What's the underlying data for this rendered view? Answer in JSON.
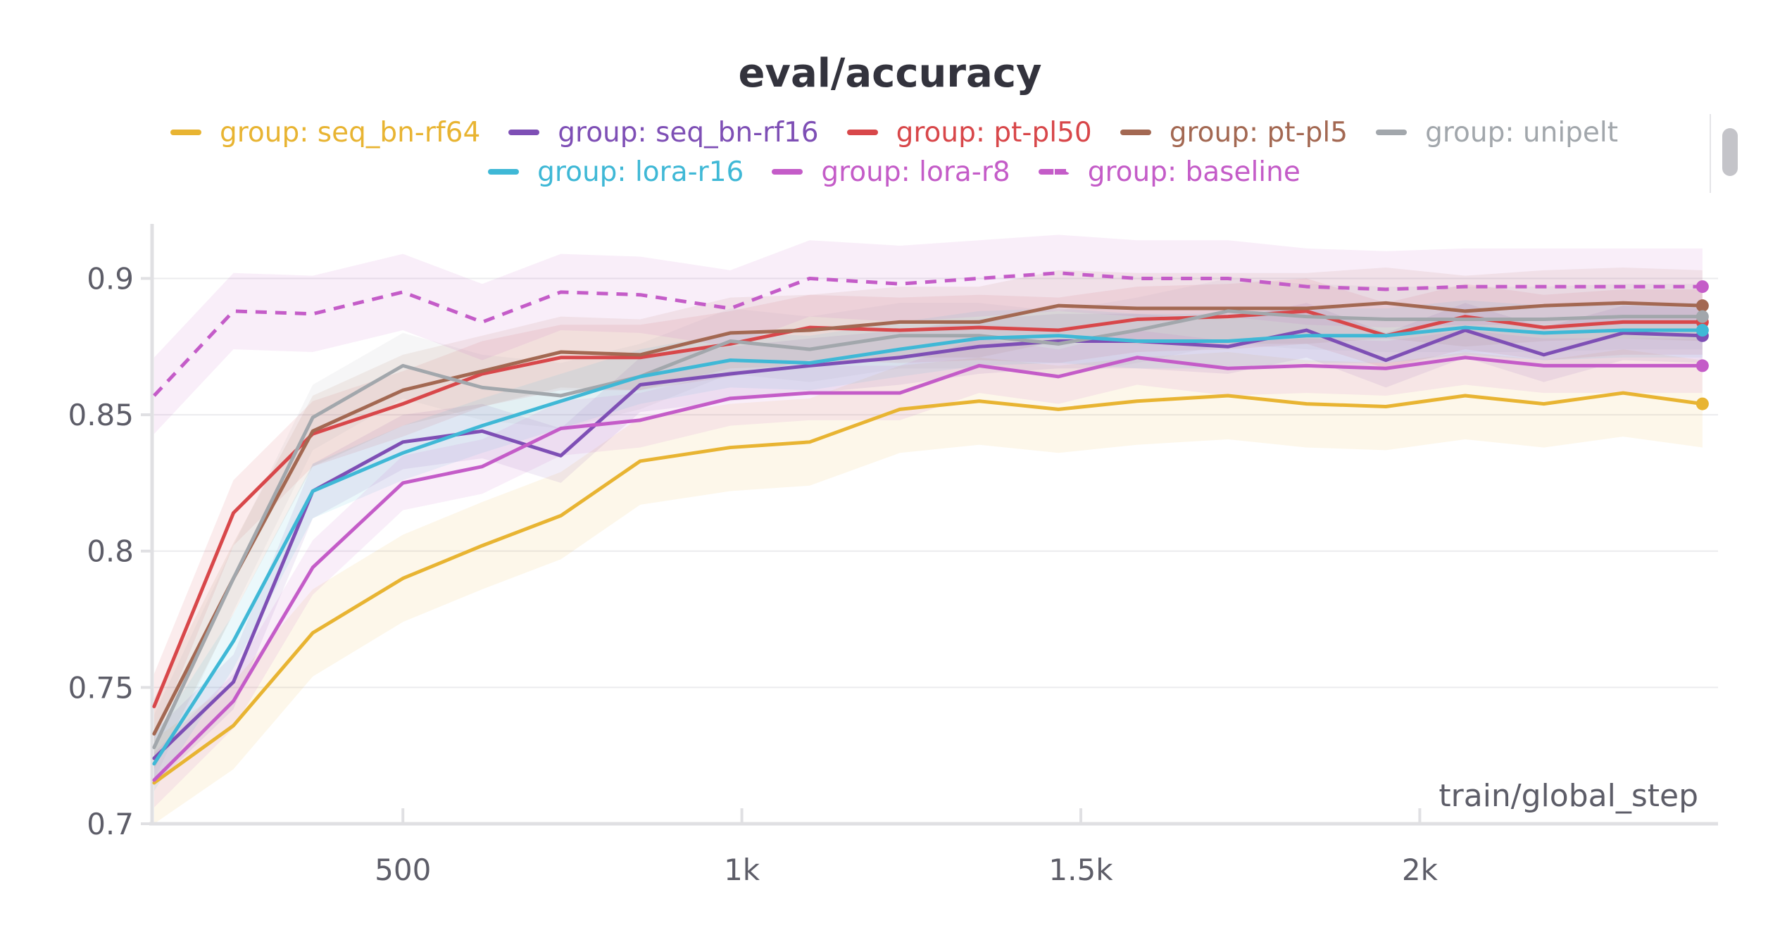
{
  "chart_data": {
    "type": "line",
    "title": "eval/accuracy",
    "xlabel": "train/global_step",
    "ylabel": "",
    "xlim": [
      130,
      2440
    ],
    "ylim": [
      0.7,
      0.92
    ],
    "x_ticks": [
      500,
      1000,
      1500,
      2000
    ],
    "x_tick_labels": [
      "500",
      "1k",
      "1.5k",
      "2k"
    ],
    "y_ticks": [
      0.7,
      0.75,
      0.8,
      0.85,
      0.9
    ],
    "y_tick_labels": [
      "0.7",
      "0.75",
      "0.8",
      "0.85",
      "0.9"
    ],
    "grid": true,
    "legend_position": "top",
    "x": [
      133,
      250,
      367,
      500,
      617,
      733,
      850,
      983,
      1100,
      1233,
      1350,
      1467,
      1583,
      1717,
      1833,
      1950,
      2067,
      2183,
      2300,
      2417
    ],
    "series": [
      {
        "name": "group: seq_bn-rf64",
        "color": "#E8B432",
        "style": "solid",
        "values": [
          0.715,
          0.736,
          0.77,
          0.79,
          0.802,
          0.813,
          0.833,
          0.838,
          0.84,
          0.852,
          0.855,
          0.852,
          0.855,
          0.857,
          0.854,
          0.853,
          0.857,
          0.854,
          0.858,
          0.854
        ],
        "band": 0.016
      },
      {
        "name": "group: seq_bn-rf16",
        "color": "#7E4FB5",
        "style": "solid",
        "values": [
          0.724,
          0.752,
          0.822,
          0.84,
          0.844,
          0.835,
          0.861,
          0.865,
          0.868,
          0.871,
          0.875,
          0.877,
          0.877,
          0.875,
          0.881,
          0.87,
          0.881,
          0.872,
          0.88,
          0.879
        ],
        "band": 0.01
      },
      {
        "name": "group: pt-pl50",
        "color": "#D8474A",
        "style": "solid",
        "values": [
          0.743,
          0.814,
          0.843,
          0.854,
          0.865,
          0.871,
          0.871,
          0.876,
          0.882,
          0.881,
          0.882,
          0.881,
          0.885,
          0.886,
          0.888,
          0.879,
          0.886,
          0.882,
          0.884,
          0.884
        ],
        "band": 0.012
      },
      {
        "name": "group: pt-pl5",
        "color": "#A36852",
        "style": "solid",
        "values": [
          0.733,
          0.79,
          0.844,
          0.859,
          0.866,
          0.873,
          0.872,
          0.88,
          0.881,
          0.884,
          0.884,
          0.89,
          0.889,
          0.889,
          0.889,
          0.891,
          0.888,
          0.89,
          0.891,
          0.89
        ],
        "band": 0.013
      },
      {
        "name": "group: unipelt",
        "color": "#A2A7AC",
        "style": "solid",
        "values": [
          0.728,
          0.79,
          0.849,
          0.868,
          0.86,
          0.857,
          0.864,
          0.877,
          0.874,
          0.879,
          0.879,
          0.876,
          0.881,
          0.888,
          0.886,
          0.885,
          0.885,
          0.885,
          0.886,
          0.886
        ],
        "band": 0.012
      },
      {
        "name": "group: lora-r16",
        "color": "#3FB8D6",
        "style": "solid",
        "values": [
          0.722,
          0.767,
          0.822,
          0.836,
          0.846,
          0.855,
          0.864,
          0.87,
          0.869,
          0.874,
          0.878,
          0.879,
          0.877,
          0.877,
          0.879,
          0.879,
          0.882,
          0.88,
          0.881,
          0.881
        ],
        "band": 0.01
      },
      {
        "name": "group: lora-r8",
        "color": "#C45CC8",
        "style": "solid",
        "values": [
          0.716,
          0.745,
          0.794,
          0.825,
          0.831,
          0.845,
          0.848,
          0.856,
          0.858,
          0.858,
          0.868,
          0.864,
          0.871,
          0.867,
          0.868,
          0.867,
          0.871,
          0.868,
          0.868,
          0.868
        ],
        "band": 0.01
      },
      {
        "name": "group: baseline",
        "color": "#C45CC8",
        "style": "dashed",
        "values": [
          0.857,
          0.888,
          0.887,
          0.895,
          0.884,
          0.895,
          0.894,
          0.889,
          0.9,
          0.898,
          0.9,
          0.902,
          0.9,
          0.9,
          0.897,
          0.896,
          0.897,
          0.897,
          0.897,
          0.897
        ],
        "band": 0.014
      }
    ]
  },
  "legend": {
    "row1": [
      {
        "label": "group: seq_bn-rf64",
        "color": "#E8B432",
        "dashed": false
      },
      {
        "label": "group: seq_bn-rf16",
        "color": "#7E4FB5",
        "dashed": false
      },
      {
        "label": "group: pt-pl50",
        "color": "#D8474A",
        "dashed": false
      },
      {
        "label": "group: pt-pl5",
        "color": "#A36852",
        "dashed": false
      },
      {
        "label": "group: unipelt",
        "color": "#A2A7AC",
        "dashed": false
      }
    ],
    "row2": [
      {
        "label": "group: lora-r16",
        "color": "#3FB8D6",
        "dashed": false
      },
      {
        "label": "group: lora-r8",
        "color": "#C45CC8",
        "dashed": false
      },
      {
        "label": "group: baseline",
        "color": "#C45CC8",
        "dashed": true
      }
    ]
  }
}
